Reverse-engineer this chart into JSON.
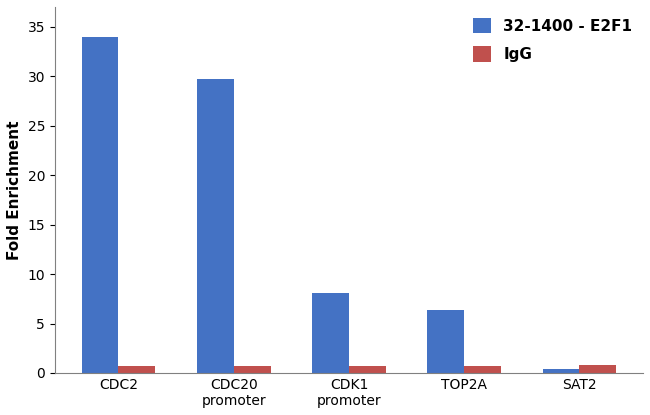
{
  "categories": [
    "CDC2",
    "CDC20\npromoter",
    "CDK1\npromoter",
    "TOP2A",
    "SAT2"
  ],
  "e2f1_values": [
    34.0,
    29.7,
    8.1,
    6.4,
    0.4
  ],
  "igg_values": [
    0.7,
    0.7,
    0.7,
    0.7,
    0.8
  ],
  "e2f1_color": "#4472C4",
  "igg_color": "#C0504D",
  "ylabel": "Fold Enrichment",
  "ylim": [
    0,
    37
  ],
  "yticks": [
    0,
    5,
    10,
    15,
    20,
    25,
    30,
    35
  ],
  "legend_e2f1": "32-1400 - E2F1",
  "legend_igg": "IgG",
  "bar_width": 0.32,
  "background_color": "#ffffff",
  "label_fontsize": 11,
  "tick_fontsize": 10,
  "legend_fontsize": 11
}
